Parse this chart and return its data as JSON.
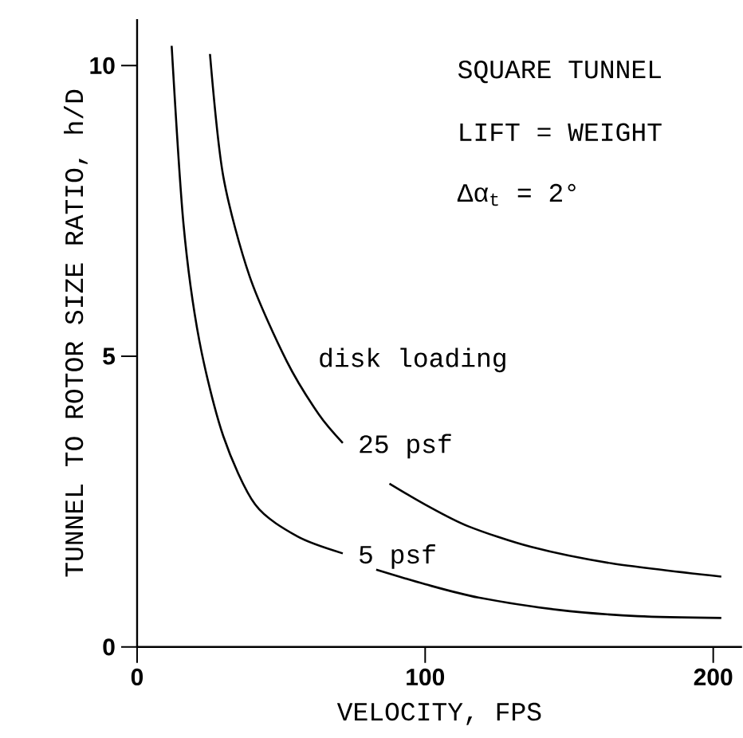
{
  "chart_data": {
    "type": "line",
    "xlabel": "VELOCITY, FPS",
    "ylabel": "TUNNEL TO ROTOR SIZE RATIO,  h/D",
    "xlim": [
      0,
      210
    ],
    "ylim": [
      0,
      10.8
    ],
    "xticks": [
      0,
      100,
      200
    ],
    "yticks": [
      0,
      5,
      10
    ],
    "annotations": [
      "SQUARE TUNNEL",
      "LIFT = WEIGHT",
      "Δα$_{t}$ = 2°",
      "disk loading"
    ],
    "series": [
      {
        "name": "25 psf",
        "color": "#000000",
        "x": [
          25.3,
          29.9,
          39.1,
          52,
          63.1,
          71.4,
          80,
          87.6,
          100,
          114.8,
          136.9,
          164.6,
          202.8
        ],
        "values": [
          10.2,
          8.1,
          6.37,
          4.91,
          4.0,
          3.51,
          null,
          2.81,
          2.45,
          2.08,
          1.72,
          1.44,
          1.21
        ]
      },
      {
        "name": "5 psf",
        "color": "#000000",
        "x": [
          12.0,
          16.1,
          21.6,
          29.9,
          41.0,
          55.7,
          71.4,
          77,
          83.0,
          100,
          118.5,
          146,
          173.8,
          202.8
        ],
        "values": [
          10.34,
          7.28,
          5.27,
          3.63,
          2.45,
          1.9,
          1.61,
          null,
          1.33,
          1.08,
          0.85,
          0.64,
          0.53,
          0.5
        ]
      }
    ]
  }
}
